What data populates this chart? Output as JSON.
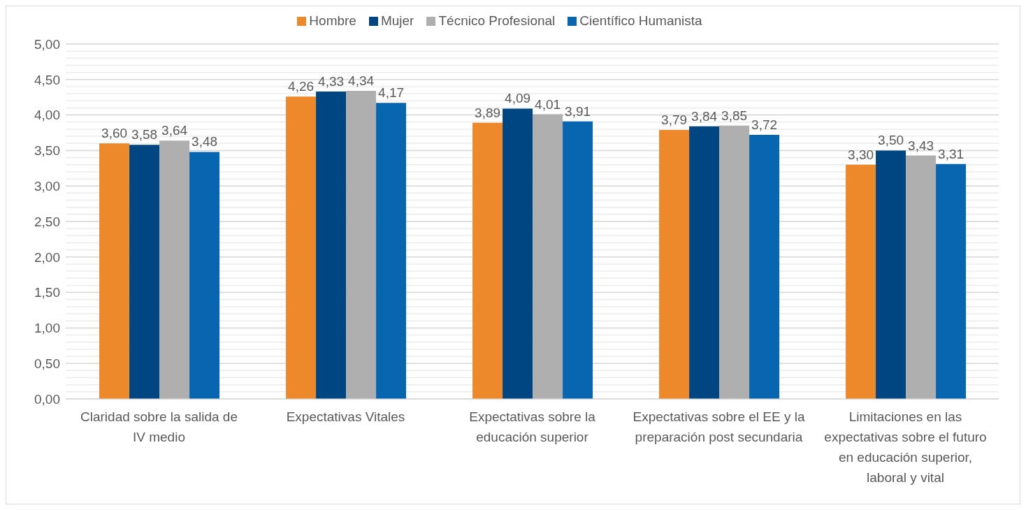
{
  "chart_data": {
    "type": "bar",
    "categories": [
      "Claridad sobre la salida de IV medio",
      "Expectativas Vitales",
      "Expectativas sobre la educación superior",
      "Expectativas sobre el EE y la preparación post secundaria",
      "Limitaciones en las expectativas sobre el futuro en educación superior, laboral y vital"
    ],
    "series": [
      {
        "name": "Hombre",
        "color": "#ed882b",
        "values": [
          3.6,
          4.26,
          3.89,
          3.79,
          3.3
        ],
        "value_labels": [
          "3,60",
          "4,26",
          "3,89",
          "3,79",
          "3,30"
        ]
      },
      {
        "name": "Mujer",
        "color": "#004682",
        "values": [
          3.58,
          4.33,
          4.09,
          3.84,
          3.5
        ],
        "value_labels": [
          "3,58",
          "4,33",
          "4,09",
          "3,84",
          "3,50"
        ]
      },
      {
        "name": "Técnico Profesional",
        "color": "#afafaf",
        "values": [
          3.64,
          4.34,
          4.01,
          3.85,
          3.43
        ],
        "value_labels": [
          "3,64",
          "4,34",
          "4,01",
          "3,85",
          "3,43"
        ]
      },
      {
        "name": "Científico Humanista",
        "color": "#0865b0",
        "values": [
          3.48,
          4.17,
          3.91,
          3.72,
          3.31
        ],
        "value_labels": [
          "3,48",
          "4,17",
          "3,91",
          "3,72",
          "3,31"
        ]
      }
    ],
    "ylim": [
      0,
      5
    ],
    "yticks": [
      {
        "value": 0,
        "label": "0,00"
      },
      {
        "value": 0.1,
        "label": null
      },
      {
        "value": 0.2,
        "label": null
      },
      {
        "value": 0.3,
        "label": null
      },
      {
        "value": 0.4,
        "label": null
      },
      {
        "value": 0.5,
        "label": "0,50"
      },
      {
        "value": 0.6,
        "label": null
      },
      {
        "value": 0.7,
        "label": null
      },
      {
        "value": 0.8,
        "label": null
      },
      {
        "value": 0.9,
        "label": null
      },
      {
        "value": 1,
        "label": "1,00"
      },
      {
        "value": 1.1,
        "label": null
      },
      {
        "value": 1.2,
        "label": null
      },
      {
        "value": 1.3,
        "label": null
      },
      {
        "value": 1.4,
        "label": null
      },
      {
        "value": 1.5,
        "label": "1,50"
      },
      {
        "value": 1.6,
        "label": null
      },
      {
        "value": 1.7,
        "label": null
      },
      {
        "value": 1.8,
        "label": null
      },
      {
        "value": 1.9,
        "label": null
      },
      {
        "value": 2,
        "label": "2,00"
      },
      {
        "value": 2.1,
        "label": null
      },
      {
        "value": 2.2,
        "label": null
      },
      {
        "value": 2.3,
        "label": null
      },
      {
        "value": 2.4,
        "label": null
      },
      {
        "value": 2.5,
        "label": "2,50"
      },
      {
        "value": 2.6,
        "label": null
      },
      {
        "value": 2.7,
        "label": null
      },
      {
        "value": 2.8,
        "label": null
      },
      {
        "value": 2.9,
        "label": null
      },
      {
        "value": 3,
        "label": "3,00"
      },
      {
        "value": 3.1,
        "label": null
      },
      {
        "value": 3.2,
        "label": null
      },
      {
        "value": 3.3,
        "label": null
      },
      {
        "value": 3.4,
        "label": null
      },
      {
        "value": 3.5,
        "label": "3,50"
      },
      {
        "value": 3.6,
        "label": null
      },
      {
        "value": 3.7,
        "label": null
      },
      {
        "value": 3.8,
        "label": null
      },
      {
        "value": 3.9,
        "label": null
      },
      {
        "value": 4,
        "label": "4,00"
      },
      {
        "value": 4.1,
        "label": null
      },
      {
        "value": 4.2,
        "label": null
      },
      {
        "value": 4.3,
        "label": null
      },
      {
        "value": 4.4,
        "label": null
      },
      {
        "value": 4.5,
        "label": "4,50"
      },
      {
        "value": 4.6,
        "label": null
      },
      {
        "value": 4.7,
        "label": null
      },
      {
        "value": 4.8,
        "label": null
      },
      {
        "value": 4.9,
        "label": null
      },
      {
        "value": 5,
        "label": "5,00"
      }
    ],
    "grid": "y",
    "legend": "top"
  }
}
